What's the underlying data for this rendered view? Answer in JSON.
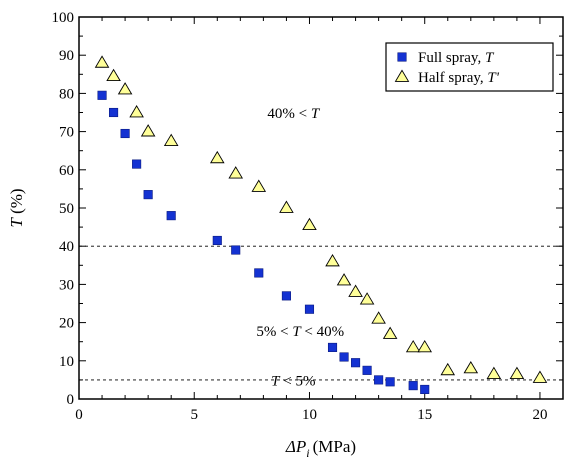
{
  "chart_data": {
    "type": "scatter",
    "xlabel": "ΔP",
    "xlabel_subscript": "i",
    "xlabel_unit": "(MPa)",
    "ylabel": "T (%)",
    "xlim": [
      0,
      21
    ],
    "ylim": [
      0,
      100
    ],
    "x_ticks": [
      0,
      5,
      10,
      15,
      20
    ],
    "y_ticks": [
      0,
      10,
      20,
      30,
      40,
      50,
      60,
      70,
      80,
      90,
      100
    ],
    "grid": false,
    "legend_position": "top-right",
    "series": [
      {
        "name": "Full spray, T",
        "legend_prefix": "Full spray, ",
        "legend_symbol": "T",
        "marker": "square",
        "color": "#1432d2",
        "x": [
          1.0,
          1.5,
          2.0,
          2.5,
          3.0,
          4.0,
          6.0,
          6.8,
          7.8,
          9.0,
          10.0,
          11.0,
          11.5,
          12.0,
          12.5,
          13.0,
          13.5,
          14.5,
          15.0
        ],
        "y": [
          79.5,
          75.0,
          69.5,
          61.5,
          53.5,
          48.0,
          41.5,
          39.0,
          33.0,
          27.0,
          23.5,
          13.5,
          11.0,
          9.5,
          7.5,
          5.0,
          4.5,
          3.5,
          2.5
        ]
      },
      {
        "name": "Half spray, T'",
        "legend_prefix": "Half spray, ",
        "legend_symbol": "T'",
        "marker": "triangle",
        "color": "#ffff99",
        "x": [
          1.0,
          1.5,
          2.0,
          2.5,
          3.0,
          4.0,
          6.0,
          6.8,
          7.8,
          9.0,
          10.0,
          11.0,
          11.5,
          12.0,
          12.5,
          13.0,
          13.5,
          14.5,
          15.0,
          16.0,
          17.0,
          18.0,
          19.0,
          20.0
        ],
        "y": [
          88.0,
          84.5,
          81.0,
          75.0,
          70.0,
          67.5,
          63.0,
          59.0,
          55.5,
          50.0,
          45.5,
          36.0,
          31.0,
          28.0,
          26.0,
          21.0,
          17.0,
          13.5,
          13.5,
          7.5,
          8.0,
          6.5,
          6.5,
          5.5
        ]
      }
    ],
    "reference_lines": [
      {
        "axis": "y",
        "value": 40,
        "style": "dashed"
      },
      {
        "axis": "y",
        "value": 5,
        "style": "dashed"
      }
    ],
    "annotations": [
      {
        "text": "40% < T",
        "x": 9.3,
        "y": 73.5
      },
      {
        "text": "5% < T < 40%",
        "x": 9.6,
        "y": 16.5
      },
      {
        "text": "T < 5%",
        "x": 9.3,
        "y": 3.5
      }
    ]
  }
}
